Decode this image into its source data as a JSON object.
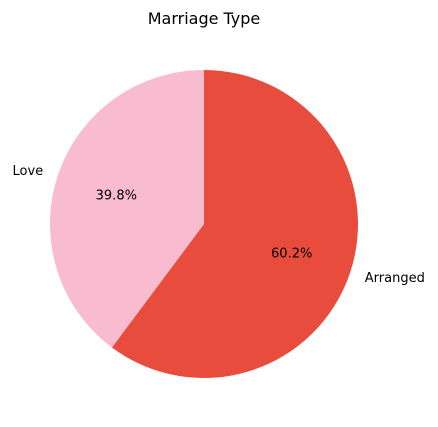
{
  "chart_data": {
    "type": "pie",
    "title": "Marriage Type",
    "categories": [
      "Arranged",
      "Love"
    ],
    "values": [
      60.2,
      39.8
    ],
    "percent_labels": [
      "60.2%",
      "39.8%"
    ],
    "colors": [
      "#e74c3c",
      "#f8bbd0"
    ],
    "start_angle_deg": 90,
    "direction": "clockwise",
    "legend": "none"
  }
}
